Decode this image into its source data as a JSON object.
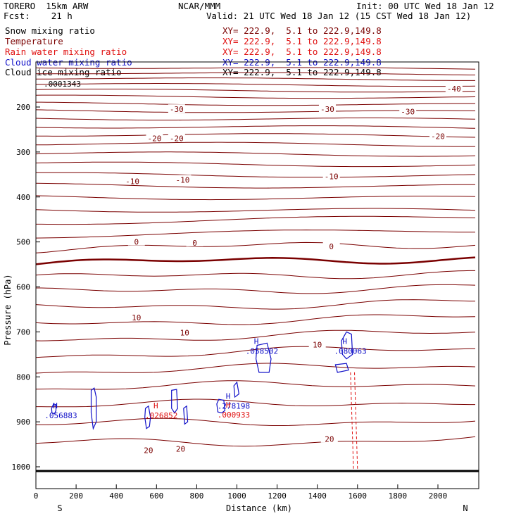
{
  "header": {
    "model": "TORERO  15km ARW",
    "center": "NCAR/MMM",
    "init": "Init: 00 UTC Wed 18 Jan 12",
    "fcst": "Fcst:    21 h",
    "valid": "Valid: 21 UTC Wed 18 Jan 12 (15 CST Wed 18 Jan 12)"
  },
  "legend": [
    {
      "name": "Snow mixing ratio",
      "xy": "",
      "color": "#000000"
    },
    {
      "name": "Temperature",
      "xy": "XY= 222.9,  5.1 to 222.9,149.8",
      "color": "#7a0000"
    },
    {
      "name": "Rain water mixing ratio",
      "xy": "XY= 222.9,  5.1 to 222.9,149.8",
      "color": "#e01010"
    },
    {
      "name": "Cloud water mixing ratio",
      "xy": "XY= 222.9,  5.1 to 222.9,149.8",
      "color": "#1010c8"
    },
    {
      "name": "Cloud ice mixing ratio",
      "xy": "XY= 222.9,  5.1 to 222.9,149.8",
      "color": "#000000"
    }
  ],
  "legend_top_xy": "XY= 222.9,  5.1 to 222.9,149.8",
  "chart_data": {
    "type": "contour",
    "xlabel": "Distance (km)",
    "ylabel": "Pressure (hPa)",
    "xlim": [
      0,
      2200
    ],
    "ylim": [
      100,
      1050
    ],
    "x_ticks": [
      0,
      200,
      400,
      600,
      800,
      1000,
      1200,
      1400,
      1600,
      1800,
      2000
    ],
    "y_ticks": [
      200,
      300,
      400,
      500,
      600,
      700,
      800,
      900,
      1000
    ],
    "x_end_labels": {
      "left": "S",
      "right": "N"
    },
    "temperature_contours": [
      {
        "label": "-40",
        "x": 2080,
        "p": 159
      },
      {
        "label": "-30",
        "x": 700,
        "p": 205
      },
      {
        "label": "-30",
        "x": 1450,
        "p": 205
      },
      {
        "label": "-30",
        "x": 1850,
        "p": 210
      },
      {
        "label": "-20",
        "x": 590,
        "p": 270
      },
      {
        "label": "-20",
        "x": 700,
        "p": 270
      },
      {
        "label": "-20",
        "x": 2000,
        "p": 265
      },
      {
        "label": "-10",
        "x": 480,
        "p": 365
      },
      {
        "label": "-10",
        "x": 730,
        "p": 362
      },
      {
        "label": "-10",
        "x": 1470,
        "p": 354
      },
      {
        "label": "0",
        "x": 500,
        "p": 500
      },
      {
        "label": "0",
        "x": 790,
        "p": 502
      },
      {
        "label": "0",
        "x": 1470,
        "p": 510
      },
      {
        "label": "10",
        "x": 500,
        "p": 668
      },
      {
        "label": "10",
        "x": 740,
        "p": 702
      },
      {
        "label": "10",
        "x": 1400,
        "p": 728
      },
      {
        "label": "20",
        "x": 560,
        "p": 963
      },
      {
        "label": "20",
        "x": 720,
        "p": 960
      },
      {
        "label": "20",
        "x": 1460,
        "p": 938
      }
    ],
    "maxima_labels": [
      {
        "symbol": "H",
        "value": ".056883",
        "x": 120,
        "p": 876,
        "color": "#1010c8"
      },
      {
        "symbol": "H",
        "value": ".026852",
        "x": 620,
        "p": 876,
        "color": "#e01010"
      },
      {
        "symbol": "H",
        "value": ".058502",
        "x": 1120,
        "p": 733,
        "color": "#1010c8"
      },
      {
        "symbol": "H",
        "value": ".080063",
        "x": 1560,
        "p": 733,
        "color": "#1010c8"
      },
      {
        "symbol": "H",
        "value": ".278198",
        "x": 980,
        "p": 855,
        "color": "#1010c8"
      },
      {
        "symbol": "H",
        "value": ".000933",
        "x": 980,
        "p": 875,
        "color": "#e01010"
      }
    ],
    "top_value_label": ".0001343"
  }
}
